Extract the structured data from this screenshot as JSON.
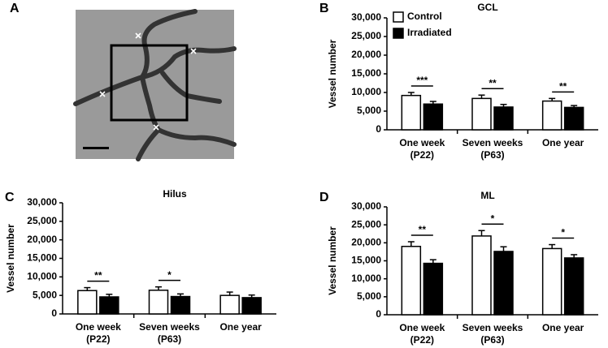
{
  "panel_labels": [
    "A",
    "B",
    "C",
    "D"
  ],
  "chart_data": [
    {
      "type": "bar",
      "title": "GCL",
      "ylabel": "Vessel number",
      "categories": [
        "One week",
        "Seven weeks",
        "One year"
      ],
      "category_sublabels": [
        "(P22)",
        "(P63)",
        null
      ],
      "series": [
        {
          "name": "Control",
          "color": "#ffffff",
          "values": [
            9200,
            8400,
            7700
          ],
          "errors": [
            800,
            900,
            700
          ]
        },
        {
          "name": "Irradiated",
          "color": "#000000",
          "values": [
            6900,
            6100,
            6000
          ],
          "errors": [
            700,
            700,
            500
          ]
        }
      ],
      "significance": [
        "***",
        "**",
        "**"
      ],
      "ylim": [
        0,
        30000
      ],
      "yticks": [
        0,
        {
          "value": 5000,
          "label": "5,000"
        },
        {
          "value": 10000,
          "label": "10,000"
        },
        {
          "value": 15000,
          "label": "15,000"
        },
        {
          "value": 20000,
          "label": "20,000"
        },
        {
          "value": 25000,
          "label": "25,000"
        },
        {
          "value": 30000,
          "label": "30,000"
        }
      ],
      "legend": "upper left"
    },
    {
      "type": "bar",
      "title": "Hilus",
      "ylabel": "Vessel number",
      "categories": [
        "One week",
        "Seven weeks",
        "One year"
      ],
      "category_sublabels": [
        "(P22)",
        "(P63)",
        null
      ],
      "series": [
        {
          "color": "#ffffff",
          "values": [
            6300,
            6400,
            5000
          ],
          "errors": [
            800,
            900,
            900
          ]
        },
        {
          "color": "#000000",
          "values": [
            4600,
            4700,
            4400
          ],
          "errors": [
            700,
            700,
            700
          ]
        }
      ],
      "significance": [
        "**",
        "*",
        null
      ],
      "ylim": [
        0,
        30000
      ],
      "yticks": [
        0,
        {
          "value": 5000,
          "label": "5,000"
        },
        {
          "value": 10000,
          "label": "10,000"
        },
        {
          "value": 15000,
          "label": "15,000"
        },
        {
          "value": 20000,
          "label": "20,000"
        },
        {
          "value": 25000,
          "label": "25,000"
        },
        {
          "value": 30000,
          "label": "30,000"
        }
      ]
    },
    {
      "type": "bar",
      "title": "ML",
      "ylabel": "Vessel number",
      "categories": [
        "One week",
        "Seven weeks",
        "One year"
      ],
      "category_sublabels": [
        "(P22)",
        "(P63)",
        null
      ],
      "series": [
        {
          "color": "#ffffff",
          "values": [
            19000,
            21900,
            18400
          ],
          "errors": [
            1300,
            1500,
            1100
          ]
        },
        {
          "color": "#000000",
          "values": [
            14300,
            17600,
            15800
          ],
          "errors": [
            1000,
            1300,
            900
          ]
        }
      ],
      "significance": [
        "**",
        "*",
        "*"
      ],
      "ylim": [
        0,
        30000
      ],
      "yticks": [
        0,
        {
          "value": 5000,
          "label": "5,000"
        },
        {
          "value": 10000,
          "label": "10,000"
        },
        {
          "value": 15000,
          "label": "15,000"
        },
        {
          "value": 20000,
          "label": "20,000"
        },
        {
          "value": 25000,
          "label": "25,000"
        },
        {
          "value": 30000,
          "label": "30,000"
        }
      ]
    }
  ]
}
